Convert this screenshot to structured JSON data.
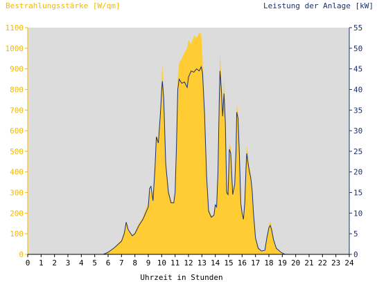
{
  "chart_data": {
    "type": "area",
    "y_left_label": "Bestrahlungsstärke [W/qm]",
    "y_right_label": "Leistung der Anlage [kW]",
    "xlabel": "Uhrzeit in Stunden",
    "x_range": [
      0,
      24
    ],
    "x_ticks": [
      "0",
      "1",
      "2",
      "3",
      "4",
      "5",
      "6",
      "7",
      "8",
      "9",
      "10",
      "11",
      "12",
      "13",
      "14",
      "15",
      "16",
      "17",
      "18",
      "19",
      "20",
      "21",
      "22",
      "23",
      "24"
    ],
    "y_left_range": [
      0,
      1100
    ],
    "y_left_ticks": [
      "0",
      "100",
      "200",
      "300",
      "400",
      "500",
      "600",
      "700",
      "800",
      "900",
      "1000",
      "1100"
    ],
    "y_right_range": [
      0,
      55
    ],
    "y_right_ticks": [
      "0",
      "5",
      "10",
      "15",
      "20",
      "25",
      "30",
      "35",
      "40",
      "45",
      "50",
      "55"
    ],
    "grid": false,
    "colors": {
      "plot_background": "#dcdcdc",
      "irradiance_fill": "#ffcc33",
      "power_line": "#1a2f6e",
      "left_axis_text": "#f2b800",
      "right_axis_text": "#1a2f6e"
    },
    "series": [
      {
        "axis": "left",
        "unit": "W/qm",
        "style": "area",
        "points": [
          [
            0,
            0
          ],
          [
            5.6,
            0
          ],
          [
            6.0,
            10
          ],
          [
            6.5,
            35
          ],
          [
            7.0,
            70
          ],
          [
            7.2,
            110
          ],
          [
            7.35,
            160
          ],
          [
            7.5,
            120
          ],
          [
            7.8,
            90
          ],
          [
            8.0,
            110
          ],
          [
            8.3,
            150
          ],
          [
            8.6,
            180
          ],
          [
            8.8,
            220
          ],
          [
            9.0,
            250
          ],
          [
            9.1,
            300
          ],
          [
            9.2,
            310
          ],
          [
            9.35,
            250
          ],
          [
            9.5,
            420
          ],
          [
            9.6,
            580
          ],
          [
            9.75,
            560
          ],
          [
            9.9,
            700
          ],
          [
            10.0,
            850
          ],
          [
            10.05,
            920
          ],
          [
            10.15,
            780
          ],
          [
            10.3,
            450
          ],
          [
            10.5,
            320
          ],
          [
            10.7,
            260
          ],
          [
            10.9,
            250
          ],
          [
            11.0,
            320
          ],
          [
            11.1,
            550
          ],
          [
            11.2,
            860
          ],
          [
            11.3,
            930
          ],
          [
            11.5,
            950
          ],
          [
            11.7,
            980
          ],
          [
            11.9,
            1000
          ],
          [
            12.0,
            1040
          ],
          [
            12.2,
            1020
          ],
          [
            12.4,
            1060
          ],
          [
            12.6,
            1050
          ],
          [
            12.8,
            1075
          ],
          [
            12.95,
            1070
          ],
          [
            13.05,
            950
          ],
          [
            13.2,
            700
          ],
          [
            13.35,
            380
          ],
          [
            13.5,
            220
          ],
          [
            13.7,
            190
          ],
          [
            13.9,
            190
          ],
          [
            14.0,
            240
          ],
          [
            14.1,
            230
          ],
          [
            14.2,
            400
          ],
          [
            14.3,
            800
          ],
          [
            14.35,
            990
          ],
          [
            14.45,
            850
          ],
          [
            14.55,
            700
          ],
          [
            14.65,
            850
          ],
          [
            14.75,
            690
          ],
          [
            14.85,
            310
          ],
          [
            14.95,
            300
          ],
          [
            15.05,
            540
          ],
          [
            15.15,
            520
          ],
          [
            15.3,
            300
          ],
          [
            15.45,
            350
          ],
          [
            15.55,
            530
          ],
          [
            15.6,
            740
          ],
          [
            15.7,
            680
          ],
          [
            15.8,
            500
          ],
          [
            15.9,
            260
          ],
          [
            16.0,
            200
          ],
          [
            16.1,
            170
          ],
          [
            16.2,
            260
          ],
          [
            16.3,
            450
          ],
          [
            16.35,
            530
          ],
          [
            16.45,
            460
          ],
          [
            16.55,
            420
          ],
          [
            16.65,
            390
          ],
          [
            16.75,
            320
          ],
          [
            16.85,
            200
          ],
          [
            17.0,
            80
          ],
          [
            17.2,
            30
          ],
          [
            17.45,
            15
          ],
          [
            17.7,
            15
          ],
          [
            17.85,
            80
          ],
          [
            18.0,
            140
          ],
          [
            18.1,
            160
          ],
          [
            18.2,
            140
          ],
          [
            18.35,
            80
          ],
          [
            18.55,
            30
          ],
          [
            18.9,
            10
          ],
          [
            19.2,
            0
          ],
          [
            24,
            0
          ]
        ]
      },
      {
        "axis": "right",
        "unit": "kW",
        "style": "line",
        "points": [
          [
            0,
            0
          ],
          [
            5.65,
            0
          ],
          [
            6.0,
            0.5
          ],
          [
            6.5,
            1.7
          ],
          [
            7.0,
            3.2
          ],
          [
            7.2,
            5.0
          ],
          [
            7.35,
            7.8
          ],
          [
            7.5,
            6.0
          ],
          [
            7.8,
            4.5
          ],
          [
            8.0,
            5.0
          ],
          [
            8.3,
            7.0
          ],
          [
            8.6,
            8.5
          ],
          [
            8.8,
            10.0
          ],
          [
            9.0,
            11.5
          ],
          [
            9.1,
            16.0
          ],
          [
            9.2,
            16.5
          ],
          [
            9.35,
            13.0
          ],
          [
            9.5,
            21.0
          ],
          [
            9.6,
            28.5
          ],
          [
            9.75,
            27.0
          ],
          [
            9.9,
            34.0
          ],
          [
            10.0,
            40.0
          ],
          [
            10.05,
            42.0
          ],
          [
            10.15,
            38.0
          ],
          [
            10.3,
            22.0
          ],
          [
            10.5,
            15.0
          ],
          [
            10.7,
            12.5
          ],
          [
            10.9,
            12.5
          ],
          [
            11.0,
            15.0
          ],
          [
            11.1,
            26.0
          ],
          [
            11.2,
            40.0
          ],
          [
            11.3,
            42.5
          ],
          [
            11.5,
            41.5
          ],
          [
            11.7,
            41.8
          ],
          [
            11.9,
            40.5
          ],
          [
            12.0,
            43.0
          ],
          [
            12.2,
            44.5
          ],
          [
            12.4,
            44.2
          ],
          [
            12.6,
            45.0
          ],
          [
            12.8,
            44.5
          ],
          [
            12.95,
            45.5
          ],
          [
            13.05,
            44.0
          ],
          [
            13.2,
            34.0
          ],
          [
            13.35,
            19.0
          ],
          [
            13.5,
            10.5
          ],
          [
            13.7,
            9.0
          ],
          [
            13.9,
            9.5
          ],
          [
            14.0,
            12.0
          ],
          [
            14.1,
            11.5
          ],
          [
            14.2,
            20.0
          ],
          [
            14.3,
            38.0
          ],
          [
            14.35,
            44.5
          ],
          [
            14.45,
            40.0
          ],
          [
            14.55,
            33.5
          ],
          [
            14.65,
            39.0
          ],
          [
            14.75,
            32.0
          ],
          [
            14.85,
            15.0
          ],
          [
            14.95,
            14.5
          ],
          [
            15.05,
            25.5
          ],
          [
            15.15,
            24.5
          ],
          [
            15.3,
            14.5
          ],
          [
            15.45,
            17.0
          ],
          [
            15.55,
            25.5
          ],
          [
            15.6,
            34.5
          ],
          [
            15.7,
            33.0
          ],
          [
            15.8,
            24.0
          ],
          [
            15.9,
            12.5
          ],
          [
            16.0,
            10.0
          ],
          [
            16.1,
            8.5
          ],
          [
            16.2,
            12.5
          ],
          [
            16.3,
            21.5
          ],
          [
            16.35,
            24.5
          ],
          [
            16.45,
            22.0
          ],
          [
            16.55,
            20.0
          ],
          [
            16.65,
            18.5
          ],
          [
            16.75,
            15.5
          ],
          [
            16.85,
            10.0
          ],
          [
            17.0,
            4.0
          ],
          [
            17.2,
            1.5
          ],
          [
            17.45,
            0.8
          ],
          [
            17.7,
            1.0
          ],
          [
            17.85,
            4.0
          ],
          [
            18.0,
            6.5
          ],
          [
            18.1,
            7.0
          ],
          [
            18.2,
            6.0
          ],
          [
            18.35,
            3.5
          ],
          [
            18.55,
            1.5
          ],
          [
            18.9,
            0.5
          ],
          [
            19.2,
            0
          ],
          [
            24,
            0
          ]
        ]
      }
    ]
  }
}
